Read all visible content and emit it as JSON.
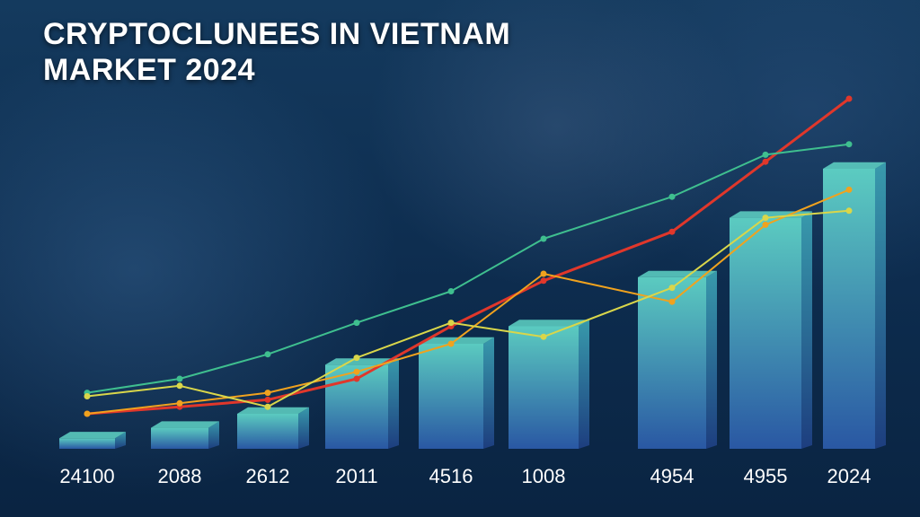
{
  "colors": {
    "background": "#0d2c4e",
    "bar_top": "#5fd3c6",
    "bar_bottom": "#2b5aa8",
    "line_red": "#e0372b",
    "line_orange": "#f0a21e",
    "line_green": "#3fbf8f",
    "line_yellow": "#d9d64a",
    "title_text": "#ffffff"
  },
  "chart_data": {
    "type": "bar",
    "title": "CRYPTOCLUNEES IN VIETNAM MARKET 2024",
    "categories": [
      "24100",
      "2088",
      "2612",
      "2011",
      "4516",
      "1008",
      "4954",
      "4955",
      "2024"
    ],
    "values": [
      3,
      6,
      10,
      24,
      30,
      35,
      49,
      66,
      80
    ],
    "ylim": [
      0,
      100
    ],
    "grid": false,
    "legend": "none",
    "series_lines": [
      {
        "color": "line_red",
        "values": [
          10,
          12,
          14,
          20,
          35,
          48,
          62,
          82,
          100
        ]
      },
      {
        "color": "line_orange",
        "values": [
          10,
          13,
          16,
          22,
          30,
          50,
          42,
          64,
          74
        ]
      },
      {
        "color": "line_green",
        "values": [
          16,
          20,
          27,
          36,
          45,
          60,
          72,
          84,
          87
        ]
      },
      {
        "color": "line_yellow",
        "values": [
          15,
          18,
          12,
          26,
          36,
          32,
          46,
          66,
          68
        ]
      }
    ]
  }
}
